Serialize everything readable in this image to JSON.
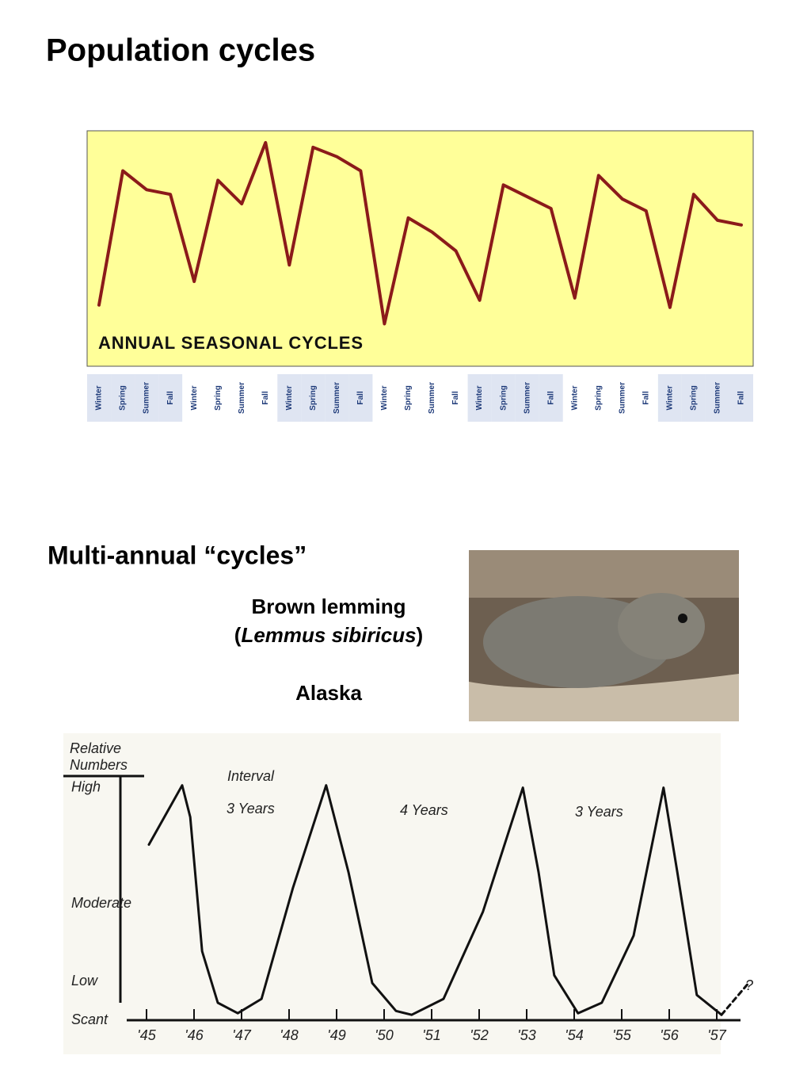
{
  "title": "Population cycles",
  "section_title": "Multi-annual “cycles”",
  "photo_caption": {
    "common_name": "Brown lemming",
    "scientific_name": [
      "(",
      "Lemmus sibiricus",
      ")"
    ],
    "location": "Alaska"
  },
  "chart_data": [
    {
      "type": "line",
      "annotation": "ANNUAL SEASONAL CYCLES",
      "background": "#ffff99",
      "categories": [
        "Winter",
        "Spring",
        "Summer",
        "Fall",
        "Winter",
        "Spring",
        "Summer",
        "Fall",
        "Winter",
        "Spring",
        "Summer",
        "Fall",
        "Winter",
        "Spring",
        "Summer",
        "Fall",
        "Winter",
        "Spring",
        "Summer",
        "Fall",
        "Winter",
        "Spring",
        "Summer",
        "Fall",
        "Winter",
        "Spring",
        "Summer",
        "Fall"
      ],
      "series": [
        {
          "color": "#8b1a1a",
          "values": [
            26,
            83,
            75,
            73,
            36,
            79,
            69,
            95,
            43,
            93,
            89,
            83,
            18,
            63,
            57,
            49,
            28,
            77,
            72,
            67,
            29,
            81,
            71,
            66,
            25,
            73,
            62,
            60
          ]
        }
      ],
      "ylim": [
        0,
        100
      ]
    },
    {
      "type": "line",
      "ylabel": [
        "Relative",
        "Numbers"
      ],
      "annotations": [
        "Interval",
        "3 Years",
        "4 Years",
        "3 Years",
        "?"
      ],
      "series": [
        {
          "color": "#111111",
          "x": [
            1945.55,
            1946.25,
            1946.42,
            1946.67,
            1947.0,
            1947.42,
            1947.92,
            1948.58,
            1949.28,
            1949.75,
            1950.25,
            1950.75,
            1951.08,
            1951.75,
            1952.58,
            1953.42,
            1953.75,
            1954.08,
            1954.58,
            1955.08,
            1955.75,
            1956.38,
            1956.67,
            1957.08,
            1957.6
          ],
          "values": [
            4.53,
            6.06,
            5.24,
            1.78,
            0.45,
            0.18,
            0.55,
            3.41,
            6.06,
            3.82,
            0.96,
            0.24,
            0.14,
            0.55,
            2.8,
            6.0,
            3.82,
            1.16,
            0.18,
            0.45,
            2.18,
            6.0,
            3.82,
            0.65,
            0.14
          ]
        },
        {
          "color": "#111111",
          "dashed": true,
          "x": [
            1957.6,
            1958.17
          ],
          "values": [
            0.14,
            0.96
          ]
        }
      ],
      "xlim": [
        1945,
        1958.5
      ],
      "xticks": [
        {
          "value": 1945.5,
          "label": "'45"
        },
        {
          "value": 1946.5,
          "label": "'46"
        },
        {
          "value": 1947.5,
          "label": "'47"
        },
        {
          "value": 1948.5,
          "label": "'48"
        },
        {
          "value": 1949.5,
          "label": "'49"
        },
        {
          "value": 1950.5,
          "label": "'50"
        },
        {
          "value": 1951.5,
          "label": "'51"
        },
        {
          "value": 1952.5,
          "label": "'52"
        },
        {
          "value": 1953.5,
          "label": "'53"
        },
        {
          "value": 1954.5,
          "label": "'54"
        },
        {
          "value": 1955.5,
          "label": "'55"
        },
        {
          "value": 1956.5,
          "label": "'56"
        },
        {
          "value": 1957.5,
          "label": "'57"
        }
      ],
      "ylim": [
        0,
        6.3
      ],
      "yticks": [
        {
          "value": 0,
          "label": "Scant"
        },
        {
          "value": 1,
          "label": "Low"
        },
        {
          "value": 3,
          "label": "Moderate"
        },
        {
          "value": 6,
          "label": "High"
        }
      ]
    }
  ]
}
